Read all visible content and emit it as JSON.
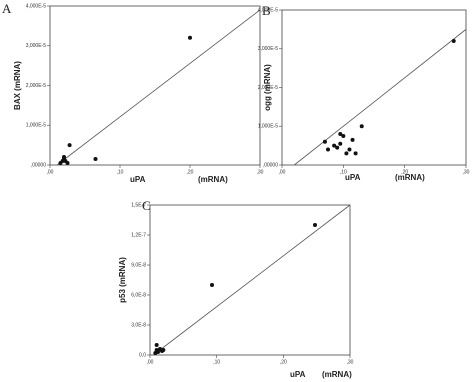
{
  "chart_data": [
    {
      "type": "scatter",
      "panel": "A",
      "x_label": "uPA",
      "x_unit": "(mRNA)",
      "y_label": "BAX (mRNA)",
      "xlim": [
        0,
        0.3
      ],
      "xticks": [
        {
          "value": 0,
          "label": ",00"
        },
        {
          "value": 0.1,
          "label": ",10"
        },
        {
          "value": 0.2,
          "label": ",20"
        },
        {
          "value": 0.3,
          "label": ",30"
        }
      ],
      "ylim": [
        0,
        4e-05
      ],
      "yticks": [
        {
          "value": 0,
          "label": ",00000"
        },
        {
          "value": 1e-05,
          "label": "1,000E-5"
        },
        {
          "value": 2e-05,
          "label": "2,000E-5"
        },
        {
          "value": 3e-05,
          "label": "3,000E-5"
        },
        {
          "value": 4e-05,
          "label": "4,000E-5"
        }
      ],
      "x": [
        0.015,
        0.018,
        0.02,
        0.022,
        0.025,
        0.02,
        0.028,
        0.065,
        0.2
      ],
      "values": [
        5e-07,
        1e-06,
        1.5e-06,
        1e-06,
        5e-07,
        2e-06,
        5e-06,
        1.5e-06,
        3.2e-05
      ],
      "color": "#111",
      "fit_line": {
        "x": [
          0.01,
          0.3
        ],
        "y": [
          0,
          3.9e-05
        ]
      }
    },
    {
      "type": "scatter",
      "panel": "B",
      "x_label": "uPA",
      "x_unit": "(mRNA)",
      "y_label": "ogg (mRNA)",
      "xlim": [
        0,
        0.3
      ],
      "xticks": [
        {
          "value": 0,
          "label": ",00"
        },
        {
          "value": 0.1,
          "label": ",10"
        },
        {
          "value": 0.2,
          "label": ",20"
        },
        {
          "value": 0.3,
          "label": ",30"
        }
      ],
      "ylim": [
        0,
        4e-05
      ],
      "yticks": [
        {
          "value": 0,
          "label": ",00000"
        },
        {
          "value": 1e-05,
          "label": "1,000E-5"
        },
        {
          "value": 2e-05,
          "label": "2,000E-5"
        },
        {
          "value": 3e-05,
          "label": "3,000E-5"
        },
        {
          "value": 4e-05,
          "label": "4,000E-5"
        }
      ],
      "x": [
        0.07,
        0.075,
        0.085,
        0.09,
        0.095,
        0.1,
        0.105,
        0.11,
        0.115,
        0.12,
        0.13,
        0.095,
        0.28
      ],
      "values": [
        6e-06,
        4e-06,
        5e-06,
        4.5e-06,
        8e-06,
        7.5e-06,
        3e-06,
        4e-06,
        6.5e-06,
        3e-06,
        1e-05,
        5.5e-06,
        3.2e-05
      ],
      "color": "#111",
      "fit_line": {
        "x": [
          0.02,
          0.3
        ],
        "y": [
          0,
          3.5e-05
        ]
      }
    },
    {
      "type": "scatter",
      "panel": "C",
      "x_label": "uPA",
      "x_unit": "(mRNA)",
      "y_label": "p53 (mRNA)",
      "xlim": [
        0,
        0.3
      ],
      "xticks": [
        {
          "value": 0,
          "label": ",00"
        },
        {
          "value": 0.1,
          "label": ",10"
        },
        {
          "value": 0.2,
          "label": ",20"
        },
        {
          "value": 0.3,
          "label": ",30"
        }
      ],
      "ylim": [
        0,
        1.5e-07
      ],
      "yticks": [
        {
          "value": 0,
          "label": "0,0"
        },
        {
          "value": 3e-08,
          "label": "3,0E-8"
        },
        {
          "value": 6e-08,
          "label": "6,0E-8"
        },
        {
          "value": 9e-08,
          "label": "9,0E-8"
        },
        {
          "value": 1.2e-07,
          "label": "1,2E-7"
        },
        {
          "value": 1.5e-07,
          "label": "1,5E-7"
        }
      ],
      "x": [
        0.008,
        0.01,
        0.012,
        0.015,
        0.018,
        0.01,
        0.02,
        0.093,
        0.2475
      ],
      "values": [
        2e-09,
        5e-09,
        3e-09,
        6e-09,
        4e-09,
        1e-08,
        5e-09,
        7e-08,
        1.3e-07
      ],
      "color": "#111",
      "fit_line": {
        "x": [
          0.005,
          0.3
        ],
        "y": [
          0,
          1.5e-07
        ]
      }
    }
  ]
}
